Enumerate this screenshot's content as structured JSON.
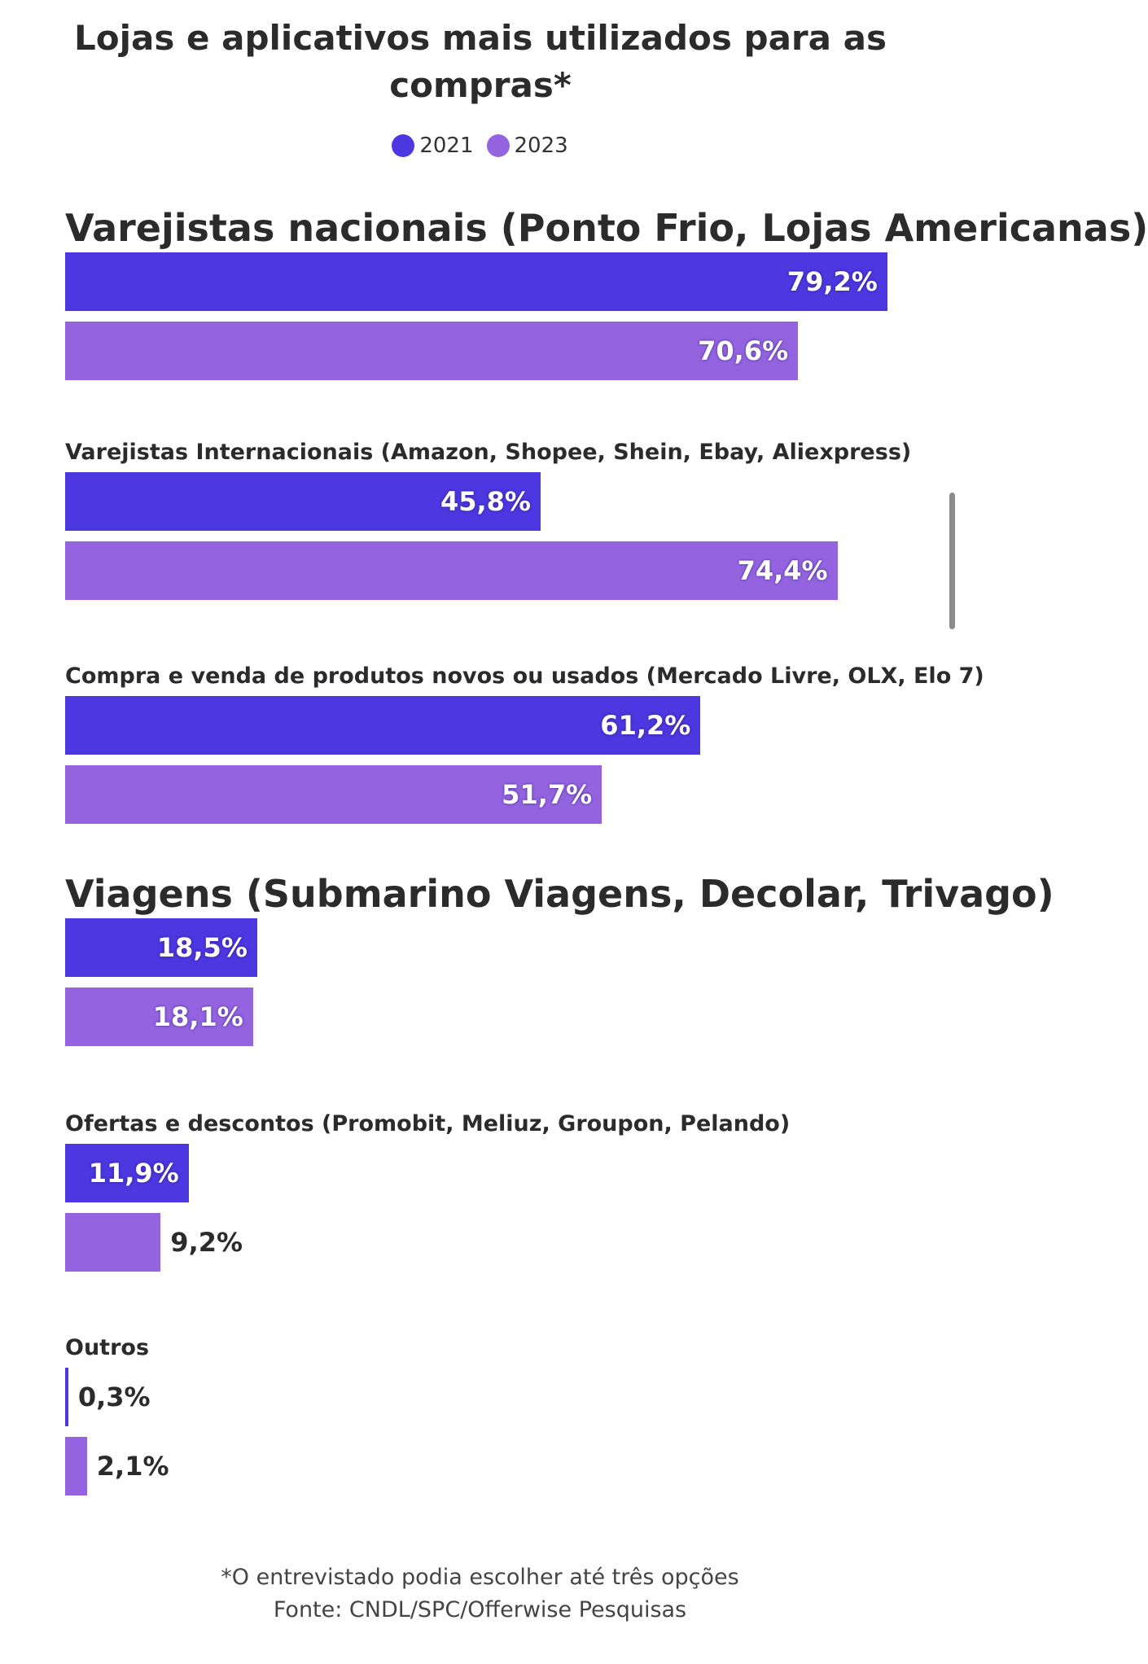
{
  "chart_data": {
    "type": "bar",
    "orientation": "horizontal",
    "title": "Lojas e aplicativos mais utilizados para as compras*",
    "categories": [
      "Varejistas nacionais (Ponto Frio, Lojas Americanas)",
      "Varejistas Internacionais (Amazon, Shopee, Shein, Ebay, Aliexpress)",
      "Compra e venda de produtos novos ou usados (Mercado Livre, OLX, Elo 7)",
      "Viagens (Submarino Viagens, Decolar, Trivago)",
      "Ofertas e descontos (Promobit, Meliuz, Groupon, Pelando)",
      "Outros"
    ],
    "series": [
      {
        "name": "2021",
        "color": "#4c37e0",
        "values": [
          79.2,
          45.8,
          61.2,
          18.5,
          11.9,
          0.3
        ]
      },
      {
        "name": "2023",
        "color": "#9464e0",
        "values": [
          70.6,
          74.4,
          51.7,
          18.1,
          9.2,
          2.1
        ]
      }
    ],
    "value_labels": [
      [
        "79,2%",
        "70,6%"
      ],
      [
        "45,8%",
        "74,4%"
      ],
      [
        "61,2%",
        "51,7%"
      ],
      [
        "18,5%",
        "18,1%"
      ],
      [
        "11,9%",
        "9,2%"
      ],
      [
        "0,3%",
        "2,1%"
      ]
    ],
    "xlim": [
      0,
      80
    ],
    "legend": "top-center",
    "grid": false
  },
  "footnote": {
    "line1": "*O entrevistado podia escolher até três opções",
    "line2": "Fonte: CNDL/SPC/Offerwise Pesquisas"
  }
}
